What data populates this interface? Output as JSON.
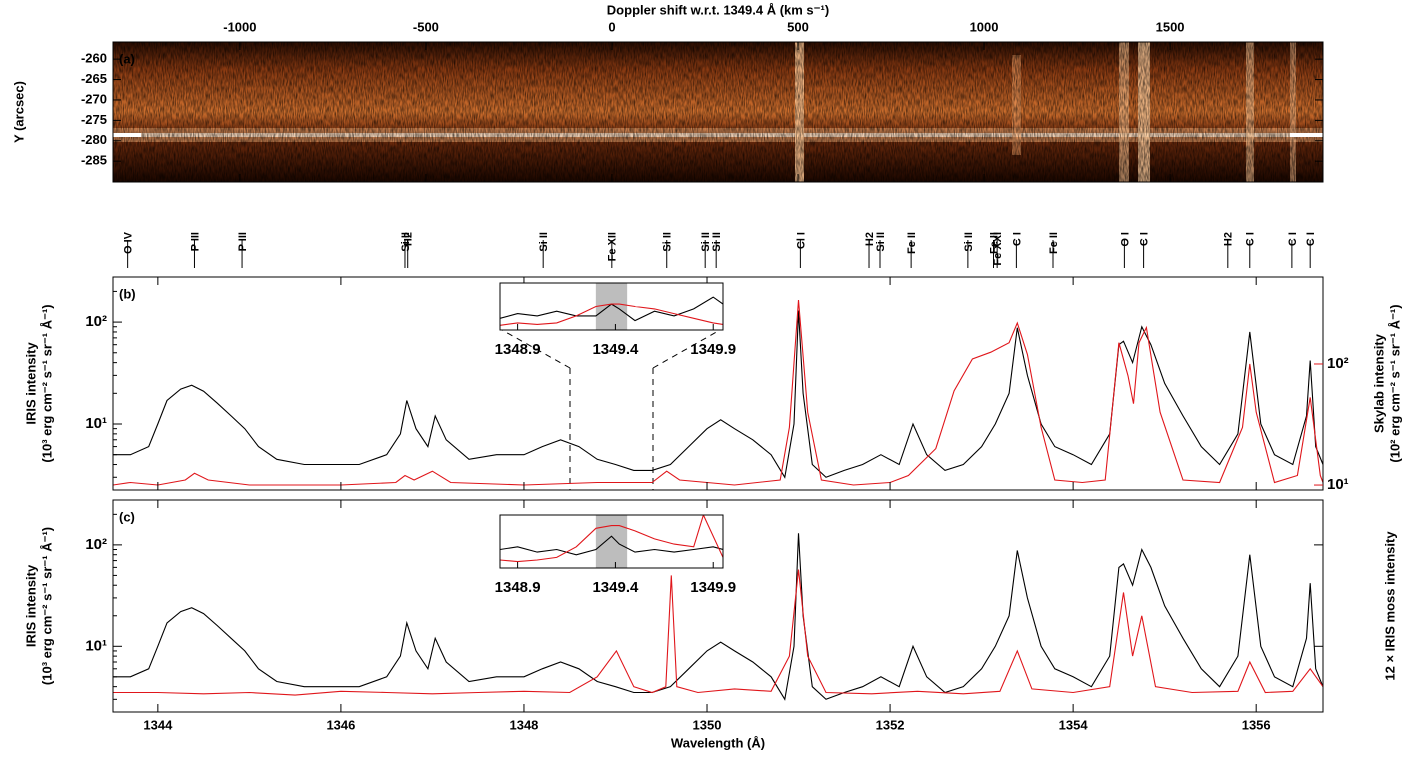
{
  "chart_data": [
    {
      "type": "image",
      "panel_label": "(a)",
      "x_label": "Doppler shift w.r.t. 1349.4 Å (km s⁻¹)",
      "xlim": [
        -1341,
        1911
      ],
      "xticks": [
        -1000,
        -500,
        0,
        500,
        1000,
        1500
      ],
      "y_label": "Y (arcsec)",
      "ylim": [
        -290.1,
        -255.8
      ],
      "yticks": [
        -260,
        -265,
        -270,
        -275,
        -280,
        -285
      ]
    },
    {
      "type": "line_ids",
      "labels": [
        "O IV",
        "P III",
        "P III",
        "Si II",
        "H2",
        "Si II",
        "Fe XII",
        "Si II",
        "Si II",
        "Si II",
        "Cl I",
        "H2",
        "Si II",
        "Fe II",
        "Si II",
        "Fe II",
        "Fe XXI",
        "C I",
        "Fe II",
        "O I",
        "C I",
        "H2",
        "C I",
        "C I",
        "C I"
      ],
      "x": [
        1343.67,
        1344.4,
        1344.92,
        1346.7,
        1346.73,
        1348.21,
        1348.96,
        1349.56,
        1349.98,
        1350.1,
        1351.02,
        1351.77,
        1351.89,
        1352.23,
        1352.85,
        1353.13,
        1353.17,
        1353.38,
        1353.78,
        1354.56,
        1354.77,
        1355.69,
        1355.93,
        1356.39,
        1356.59
      ]
    },
    {
      "type": "line",
      "panel_label": "(b)",
      "log": true,
      "xlim": [
        1343.51,
        1356.73
      ],
      "ylim": [
        2.25,
        277
      ],
      "yticks": [
        {
          "value": 10,
          "label": "10¹"
        },
        {
          "value": 100,
          "label": "10²"
        }
      ],
      "y_label": [
        "IRIS intensity",
        "(10³ erg cm⁻² s⁻¹ sr⁻¹ Å⁻¹)"
      ],
      "y2lim": [
        9.1,
        523
      ],
      "y2ticks": [
        {
          "value": 10,
          "label": "10¹"
        },
        {
          "value": 100,
          "label": "10²"
        }
      ],
      "y2_label": [
        "Skylab intensity",
        "(10² erg cm⁻² s⁻¹ sr⁻¹ Å⁻¹)"
      ],
      "y2_color": "#e0161b",
      "series": [
        {
          "color": "#000000",
          "x": [
            1343.51,
            1343.7,
            1343.9,
            1344.0,
            1344.1,
            1344.25,
            1344.37,
            1344.5,
            1344.65,
            1344.8,
            1344.95,
            1345.1,
            1345.3,
            1345.6,
            1345.9,
            1346.2,
            1346.5,
            1346.65,
            1346.72,
            1346.82,
            1346.95,
            1347.03,
            1347.15,
            1347.4,
            1347.7,
            1348.0,
            1348.2,
            1348.4,
            1348.6,
            1348.8,
            1349.0,
            1349.2,
            1349.4,
            1349.6,
            1349.8,
            1350.0,
            1350.15,
            1350.3,
            1350.5,
            1350.7,
            1350.85,
            1350.95,
            1351.0,
            1351.05,
            1351.15,
            1351.3,
            1351.5,
            1351.7,
            1351.9,
            1352.1,
            1352.25,
            1352.4,
            1352.6,
            1352.8,
            1353.0,
            1353.15,
            1353.3,
            1353.39,
            1353.5,
            1353.65,
            1353.8,
            1354.0,
            1354.2,
            1354.4,
            1354.5,
            1354.55,
            1354.65,
            1354.75,
            1354.85,
            1355.0,
            1355.2,
            1355.4,
            1355.6,
            1355.8,
            1355.93,
            1356.05,
            1356.2,
            1356.4,
            1356.55,
            1356.59,
            1356.65,
            1356.73
          ],
          "values": [
            5,
            5,
            6,
            10,
            17,
            22,
            24,
            21,
            16,
            12,
            9,
            6,
            4.5,
            4,
            4,
            4,
            5,
            8,
            17,
            9,
            6,
            12,
            7,
            4.5,
            5,
            5,
            6,
            7,
            6,
            4.5,
            4,
            3.5,
            3.5,
            4,
            6,
            9,
            11,
            9,
            7,
            5,
            3,
            10,
            130,
            20,
            4,
            3,
            3.5,
            4,
            5,
            4,
            10,
            5,
            3.5,
            4,
            6,
            10,
            20,
            88,
            30,
            10,
            6,
            5,
            4,
            8,
            60,
            65,
            40,
            90,
            60,
            25,
            12,
            6,
            4,
            8,
            80,
            10,
            5,
            4,
            12,
            42,
            6,
            4
          ]
        },
        {
          "color": "#e0161b",
          "axis": "y2",
          "x": [
            1343.51,
            1343.7,
            1344.0,
            1344.3,
            1344.4,
            1344.55,
            1345.0,
            1346.0,
            1346.6,
            1346.7,
            1346.8,
            1347.0,
            1347.2,
            1348.0,
            1348.8,
            1349.4,
            1349.56,
            1349.7,
            1350.3,
            1350.8,
            1350.9,
            1351.0,
            1351.1,
            1351.25,
            1351.6,
            1352.0,
            1352.2,
            1352.5,
            1352.7,
            1352.9,
            1353.1,
            1353.3,
            1353.39,
            1353.5,
            1353.65,
            1353.8,
            1354.1,
            1354.35,
            1354.5,
            1354.6,
            1354.66,
            1354.72,
            1354.8,
            1354.95,
            1355.2,
            1355.6,
            1355.85,
            1355.93,
            1356.0,
            1356.2,
            1356.45,
            1356.59,
            1356.7,
            1356.73
          ],
          "values": [
            10,
            10.5,
            10,
            11,
            12.5,
            11,
            10,
            10,
            10.5,
            12,
            11,
            13,
            10.5,
            10,
            10.5,
            10.5,
            13,
            11,
            10,
            11,
            30,
            338,
            40,
            11,
            10,
            10.5,
            12,
            20,
            60,
            110,
            125,
            150,
            218,
            120,
            30,
            11,
            10.5,
            11,
            150,
            80,
            47,
            150,
            200,
            40,
            11,
            10.5,
            30,
            100,
            40,
            10.5,
            12,
            53,
            12,
            10.5
          ]
        }
      ]
    },
    {
      "type": "line",
      "panel_label": "(c)",
      "log": true,
      "xlim": [
        1343.51,
        1356.73
      ],
      "xticks": [
        1344,
        1346,
        1348,
        1350,
        1352,
        1354,
        1356
      ],
      "x_label": "Wavelength (Å)",
      "ylim": [
        2.25,
        277
      ],
      "yticks": [
        {
          "value": 10,
          "label": "10¹"
        },
        {
          "value": 100,
          "label": "10²"
        }
      ],
      "y_label": [
        "IRIS intensity",
        "(10³ erg cm⁻² s⁻¹ sr⁻¹ Å⁻¹)"
      ],
      "y2_label": [
        "12 × IRIS moss intensity"
      ],
      "y2_color": "#e0161b",
      "series": [
        {
          "color": "#000000",
          "x": [
            1343.51,
            1343.7,
            1343.9,
            1344.0,
            1344.1,
            1344.25,
            1344.37,
            1344.5,
            1344.65,
            1344.8,
            1344.95,
            1345.1,
            1345.3,
            1345.6,
            1345.9,
            1346.2,
            1346.5,
            1346.65,
            1346.72,
            1346.82,
            1346.95,
            1347.03,
            1347.15,
            1347.4,
            1347.7,
            1348.0,
            1348.2,
            1348.4,
            1348.6,
            1348.8,
            1349.0,
            1349.2,
            1349.4,
            1349.6,
            1349.8,
            1350.0,
            1350.15,
            1350.3,
            1350.5,
            1350.7,
            1350.85,
            1350.95,
            1351.0,
            1351.05,
            1351.15,
            1351.3,
            1351.5,
            1351.7,
            1351.9,
            1352.1,
            1352.25,
            1352.4,
            1352.6,
            1352.8,
            1353.0,
            1353.15,
            1353.3,
            1353.39,
            1353.5,
            1353.65,
            1353.8,
            1354.0,
            1354.2,
            1354.4,
            1354.5,
            1354.55,
            1354.65,
            1354.75,
            1354.85,
            1355.0,
            1355.2,
            1355.4,
            1355.6,
            1355.8,
            1355.93,
            1356.05,
            1356.2,
            1356.4,
            1356.55,
            1356.59,
            1356.65,
            1356.73
          ],
          "values": [
            5,
            5,
            6,
            10,
            17,
            22,
            24,
            21,
            16,
            12,
            9,
            6,
            4.5,
            4,
            4,
            4,
            5,
            8,
            17,
            9,
            6,
            12,
            7,
            4.5,
            5,
            5,
            6,
            7,
            6,
            4.5,
            4,
            3.5,
            3.5,
            4,
            6,
            9,
            11,
            9,
            7,
            5,
            3,
            10,
            130,
            20,
            4,
            3,
            3.5,
            4,
            5,
            4,
            10,
            5,
            3.5,
            4,
            6,
            10,
            20,
            88,
            30,
            10,
            6,
            5,
            4,
            8,
            60,
            65,
            40,
            90,
            60,
            25,
            12,
            6,
            4,
            8,
            80,
            10,
            5,
            4,
            12,
            42,
            6,
            4
          ]
        },
        {
          "color": "#e0161b",
          "x": [
            1343.51,
            1344.0,
            1344.5,
            1345.0,
            1345.5,
            1346.0,
            1346.5,
            1347.0,
            1347.5,
            1348.0,
            1348.5,
            1348.8,
            1349.01,
            1349.2,
            1349.4,
            1349.55,
            1349.61,
            1349.67,
            1349.9,
            1350.3,
            1350.7,
            1350.9,
            1351.0,
            1351.1,
            1351.3,
            1351.8,
            1352.3,
            1352.8,
            1353.2,
            1353.39,
            1353.55,
            1354.0,
            1354.4,
            1354.55,
            1354.65,
            1354.75,
            1354.9,
            1355.3,
            1355.8,
            1355.93,
            1356.1,
            1356.4,
            1356.59,
            1356.73
          ],
          "values": [
            3.5,
            3.5,
            3.4,
            3.5,
            3.3,
            3.6,
            3.5,
            3.4,
            3.5,
            3.6,
            3.5,
            5,
            9,
            4,
            3.5,
            4,
            50,
            4,
            3.5,
            3.8,
            3.6,
            8,
            57,
            8,
            3.5,
            3.4,
            3.6,
            3.4,
            3.6,
            9,
            3.8,
            3.5,
            4,
            34,
            8,
            20,
            4,
            3.5,
            3.6,
            7,
            3.5,
            3.6,
            6,
            4
          ]
        }
      ]
    },
    {
      "type": "inset",
      "xlim": [
        1348.81,
        1349.95
      ],
      "xticks": [
        1348.9,
        1349.4,
        1349.9
      ],
      "band": [
        1349.3,
        1349.46
      ],
      "band_color": "#bdbdbd",
      "ylim": [
        0,
        1
      ],
      "series": [
        {
          "color": "#000000",
          "x": [
            1348.81,
            1348.9,
            1349.0,
            1349.1,
            1349.2,
            1349.3,
            1349.38,
            1349.42,
            1349.5,
            1349.6,
            1349.7,
            1349.8,
            1349.9,
            1349.95
          ],
          "values": [
            0.25,
            0.35,
            0.3,
            0.4,
            0.3,
            0.3,
            0.55,
            0.45,
            0.2,
            0.4,
            0.3,
            0.45,
            0.7,
            0.55
          ]
        },
        {
          "color": "#e0161b",
          "x": [
            1348.81,
            1348.9,
            1349.0,
            1349.1,
            1349.2,
            1349.3,
            1349.38,
            1349.42,
            1349.5,
            1349.6,
            1349.7,
            1349.8,
            1349.9,
            1349.95
          ],
          "values": [
            0.1,
            0.15,
            0.12,
            0.15,
            0.3,
            0.5,
            0.55,
            0.55,
            0.5,
            0.45,
            0.35,
            0.25,
            0.15,
            0.12
          ]
        }
      ]
    },
    {
      "type": "inset",
      "xlim": [
        1348.81,
        1349.95
      ],
      "xticks": [
        1348.9,
        1349.4,
        1349.9
      ],
      "band": [
        1349.3,
        1349.46
      ],
      "band_color": "#bdbdbd",
      "ylim": [
        0,
        1
      ],
      "series": [
        {
          "color": "#000000",
          "x": [
            1348.81,
            1348.9,
            1349.0,
            1349.1,
            1349.2,
            1349.3,
            1349.38,
            1349.42,
            1349.5,
            1349.6,
            1349.7,
            1349.8,
            1349.9,
            1349.95
          ],
          "values": [
            0.35,
            0.4,
            0.3,
            0.35,
            0.25,
            0.35,
            0.6,
            0.45,
            0.3,
            0.35,
            0.3,
            0.35,
            0.4,
            0.35
          ]
        },
        {
          "color": "#e0161b",
          "x": [
            1348.81,
            1348.9,
            1349.0,
            1349.1,
            1349.2,
            1349.3,
            1349.38,
            1349.42,
            1349.5,
            1349.6,
            1349.7,
            1349.8,
            1349.85,
            1349.95
          ],
          "values": [
            0.15,
            0.12,
            0.15,
            0.2,
            0.4,
            0.75,
            0.8,
            0.8,
            0.7,
            0.55,
            0.45,
            0.4,
            1.0,
            0.2
          ]
        }
      ]
    }
  ]
}
